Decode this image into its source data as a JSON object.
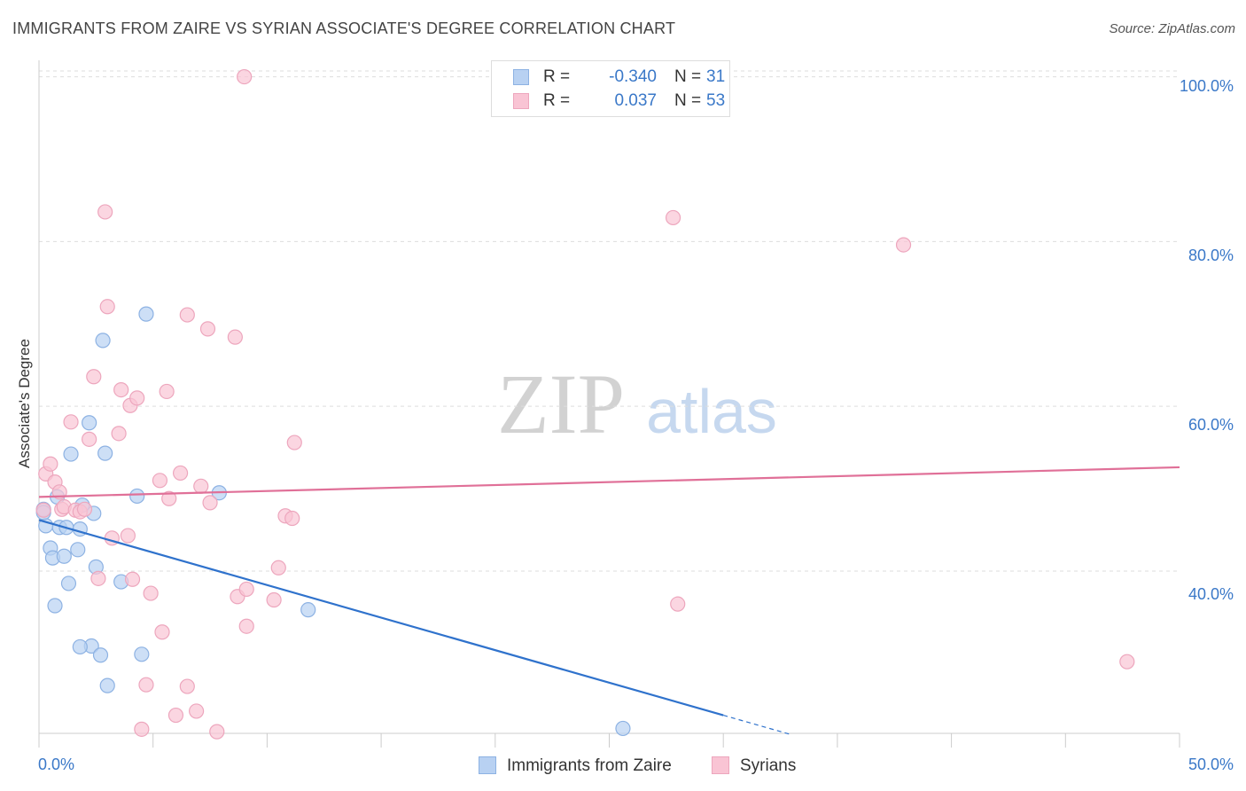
{
  "header": {
    "title": "IMMIGRANTS FROM ZAIRE VS SYRIAN ASSOCIATE'S DEGREE CORRELATION CHART",
    "source": "Source: ZipAtlas.com"
  },
  "watermark": {
    "zip": "ZIP",
    "atlas": "atlas"
  },
  "legend": {
    "r_label": "R =",
    "n_label": "N =",
    "rows": [
      {
        "r": "-0.340",
        "n": "31"
      },
      {
        "r": "0.037",
        "n": "53"
      }
    ]
  },
  "chart_data": {
    "type": "scatter",
    "title": "IMMIGRANTS FROM ZAIRE VS SYRIAN ASSOCIATE'S DEGREE CORRELATION CHART",
    "xlabel": "",
    "ylabel": "Associate's Degree",
    "x_tick_labels": [
      "0.0%",
      "50.0%"
    ],
    "y_tick_labels": [
      "40.0%",
      "60.0%",
      "80.0%",
      "100.0%"
    ],
    "y_ticks": [
      40,
      60,
      80,
      100
    ],
    "xlim": [
      0,
      50
    ],
    "ylim": [
      20.3,
      102
    ],
    "grid": true,
    "legend_position": "top-center",
    "colors": {
      "zaire_fill": "#b8d1f2",
      "zaire_stroke": "#8db2e3",
      "zaire_line": "#2f72cc",
      "syria_fill": "#f9c4d4",
      "syria_stroke": "#eda6bd",
      "syria_line": "#e07098",
      "tick_label": "#3a78c8",
      "grid": "#dddddd",
      "axis": "#cccccc"
    },
    "series": [
      {
        "name": "Immigrants from Zaire",
        "color": "#b8d1f2",
        "trend": {
          "x0": 0,
          "y0": 46.2,
          "x1": 30,
          "y1": 22.5,
          "dashed_to_x": 33
        },
        "points": [
          [
            0.2,
            47.5
          ],
          [
            0.3,
            45.5
          ],
          [
            0.5,
            42.8
          ],
          [
            0.6,
            41.6
          ],
          [
            0.8,
            49
          ],
          [
            0.9,
            45.3
          ],
          [
            1.1,
            41.8
          ],
          [
            1.2,
            45.3
          ],
          [
            1.3,
            38.5
          ],
          [
            1.4,
            54.2
          ],
          [
            1.7,
            42.6
          ],
          [
            1.8,
            45.1
          ],
          [
            1.9,
            48
          ],
          [
            2.2,
            58
          ],
          [
            2.3,
            30.9
          ],
          [
            2.4,
            47
          ],
          [
            2.5,
            40.5
          ],
          [
            2.7,
            29.8
          ],
          [
            2.8,
            68
          ],
          [
            2.9,
            54.3
          ],
          [
            3.0,
            26.1
          ],
          [
            3.6,
            38.7
          ],
          [
            4.3,
            49.1
          ],
          [
            4.5,
            29.9
          ],
          [
            4.7,
            71.2
          ],
          [
            0.7,
            35.8
          ],
          [
            1.8,
            30.8
          ],
          [
            7.9,
            49.5
          ],
          [
            11.8,
            35.3
          ],
          [
            25.6,
            20.9
          ],
          [
            0.2,
            47.1
          ]
        ]
      },
      {
        "name": "Syrians",
        "color": "#f9c4d4",
        "trend": {
          "x0": 0,
          "y0": 49.0,
          "x1": 50,
          "y1": 52.6
        },
        "points": [
          [
            0.2,
            47.4
          ],
          [
            0.3,
            51.8
          ],
          [
            0.5,
            53
          ],
          [
            0.7,
            50.8
          ],
          [
            0.9,
            49.6
          ],
          [
            1.0,
            47.5
          ],
          [
            1.1,
            47.8
          ],
          [
            1.4,
            58.1
          ],
          [
            1.6,
            47.4
          ],
          [
            1.8,
            47.2
          ],
          [
            2.0,
            47.5
          ],
          [
            2.2,
            56
          ],
          [
            2.4,
            63.6
          ],
          [
            2.6,
            39.1
          ],
          [
            2.9,
            83.6
          ],
          [
            3.0,
            72.1
          ],
          [
            3.2,
            44
          ],
          [
            3.5,
            56.7
          ],
          [
            3.6,
            62
          ],
          [
            3.9,
            44.3
          ],
          [
            4.0,
            60.1
          ],
          [
            4.1,
            39
          ],
          [
            4.3,
            61
          ],
          [
            4.5,
            20.8
          ],
          [
            4.7,
            26.2
          ],
          [
            4.9,
            37.3
          ],
          [
            5.3,
            51
          ],
          [
            5.4,
            32.6
          ],
          [
            5.6,
            61.8
          ],
          [
            5.7,
            48.8
          ],
          [
            6.0,
            22.5
          ],
          [
            6.2,
            51.9
          ],
          [
            6.5,
            26
          ],
          [
            6.5,
            71.1
          ],
          [
            6.9,
            23
          ],
          [
            7.1,
            50.3
          ],
          [
            7.4,
            69.4
          ],
          [
            7.5,
            48.3
          ],
          [
            7.8,
            20.5
          ],
          [
            8.6,
            68.4
          ],
          [
            8.7,
            36.9
          ],
          [
            9.1,
            37.8
          ],
          [
            9.1,
            33.3
          ],
          [
            10.3,
            36.5
          ],
          [
            10.5,
            40.4
          ],
          [
            10.8,
            46.7
          ],
          [
            11.1,
            46.4
          ],
          [
            11.2,
            55.6
          ],
          [
            9.0,
            100
          ],
          [
            27.8,
            82.9
          ],
          [
            28.0,
            36
          ],
          [
            37.9,
            79.6
          ],
          [
            47.7,
            29
          ]
        ]
      }
    ]
  },
  "bottom_legend": {
    "items": [
      {
        "label": "Immigrants from Zaire"
      },
      {
        "label": "Syrians"
      }
    ]
  }
}
